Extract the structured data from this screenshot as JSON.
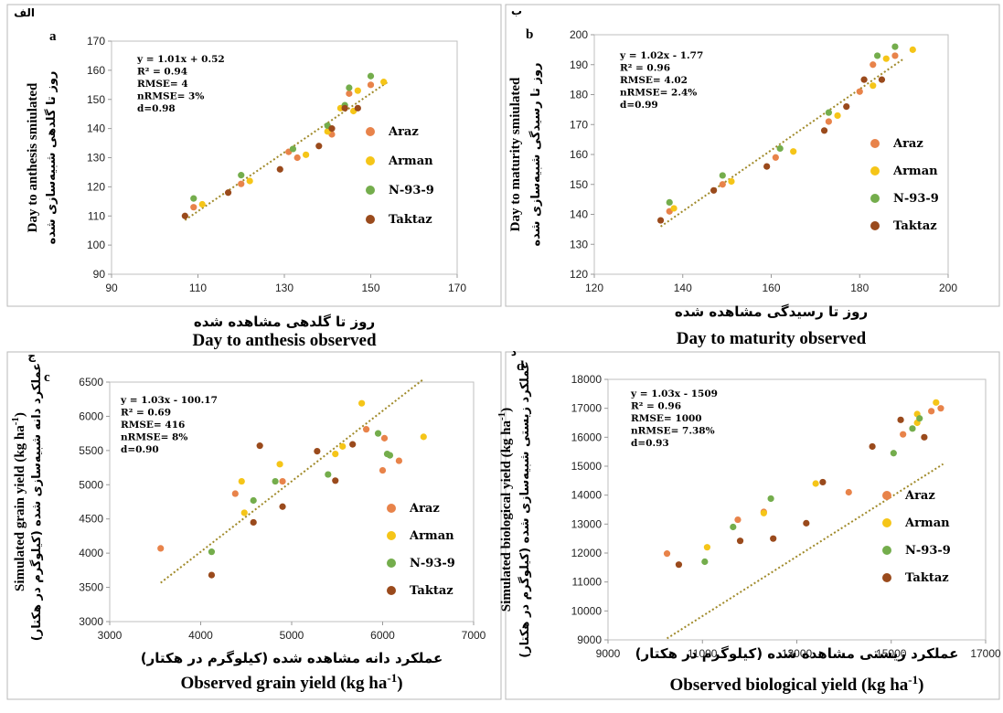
{
  "colors": {
    "Araz": "#e8834a",
    "Arman": "#f5c518",
    "N-93-9": "#74ad4c",
    "Taktaz": "#9a4a1c",
    "trend": "#a08a2a",
    "frame": "#b8b8b8"
  },
  "legend_labels": [
    "Araz",
    "Arman",
    "N-93-9",
    "Taktaz"
  ],
  "chart_data": [
    {
      "id": "a",
      "type": "scatter",
      "panel_letter": "a",
      "panel_letter_fa": "الف",
      "xlabel_fa": "روز تا گلدهی مشاهده شده",
      "xlabel": "Day to anthesis observed",
      "ylabel": "Day to anthesis smiulated",
      "ylabel_fa": "روز تا گلدهی شبیه‌سازی شده",
      "xlim": [
        90,
        170
      ],
      "ylim": [
        90,
        170
      ],
      "xticks": [
        90,
        110,
        130,
        150,
        170
      ],
      "yticks": [
        90,
        100,
        110,
        120,
        130,
        140,
        150,
        160,
        170
      ],
      "stats": [
        "y = 1.01x + 0.52",
        "R² = 0.94",
        "RMSE= 4",
        "nRMSE= 3%",
        "d=0.98"
      ],
      "trendline": {
        "slope": 1.01,
        "intercept": 0.52,
        "x_range": [
          107,
          154
        ]
      },
      "series": [
        {
          "name": "Araz",
          "points": [
            [
              109,
              113
            ],
            [
              120,
              121
            ],
            [
              141,
              138
            ],
            [
              145,
              152
            ],
            [
              150,
              155
            ],
            [
              133,
              130
            ],
            [
              131,
              132
            ]
          ]
        },
        {
          "name": "Arman",
          "points": [
            [
              111,
              114
            ],
            [
              122,
              122
            ],
            [
              135,
              131
            ],
            [
              146,
              146
            ],
            [
              147,
              153
            ],
            [
              153,
              156
            ],
            [
              140,
              139
            ],
            [
              143,
              147
            ]
          ]
        },
        {
          "name": "N-93-9",
          "points": [
            [
              109,
              116
            ],
            [
              120,
              124
            ],
            [
              132,
              133
            ],
            [
              140,
              141
            ],
            [
              144,
              148
            ],
            [
              145,
              154
            ],
            [
              150,
              158
            ]
          ]
        },
        {
          "name": "Taktaz",
          "points": [
            [
              107,
              110
            ],
            [
              117,
              118
            ],
            [
              129,
              126
            ],
            [
              138,
              134
            ],
            [
              141,
              140
            ],
            [
              144,
              147
            ],
            [
              147,
              147
            ]
          ]
        }
      ]
    },
    {
      "id": "b",
      "type": "scatter",
      "panel_letter": "b",
      "panel_letter_fa": "ب",
      "xlabel_fa": "روز تا رسیدگی مشاهده شده",
      "xlabel": "Day to maturity observed",
      "ylabel": "Day to maturity smiulated",
      "ylabel_fa": "روز تا رسیدگی شبیه‌سازی شده",
      "xlim": [
        120,
        200
      ],
      "ylim": [
        120,
        200
      ],
      "xticks": [
        120,
        140,
        160,
        180,
        200
      ],
      "yticks": [
        120,
        130,
        140,
        150,
        160,
        170,
        180,
        190,
        200
      ],
      "stats": [
        "y = 1.02x - 1.77",
        "R² = 0.96",
        "RMSE= 4.02",
        "nRMSE= 2.4%",
        "d=0.99"
      ],
      "trendline": {
        "slope": 1.02,
        "intercept": -1.77,
        "x_range": [
          135,
          190
        ]
      },
      "series": [
        {
          "name": "Araz",
          "points": [
            [
              137,
              141
            ],
            [
              149,
              150
            ],
            [
              161,
              159
            ],
            [
              173,
              171
            ],
            [
              180,
              181
            ],
            [
              183,
              190
            ],
            [
              188,
              193
            ]
          ]
        },
        {
          "name": "Arman",
          "points": [
            [
              138,
              142
            ],
            [
              151,
              151
            ],
            [
              165,
              161
            ],
            [
              175,
              173
            ],
            [
              183,
              183
            ],
            [
              186,
              192
            ],
            [
              192,
              195
            ]
          ]
        },
        {
          "name": "N-93-9",
          "points": [
            [
              137,
              144
            ],
            [
              149,
              153
            ],
            [
              162,
              162
            ],
            [
              173,
              174
            ],
            [
              184,
              193
            ],
            [
              188,
              196
            ]
          ]
        },
        {
          "name": "Taktaz",
          "points": [
            [
              135,
              138
            ],
            [
              147,
              148
            ],
            [
              159,
              156
            ],
            [
              172,
              168
            ],
            [
              177,
              176
            ],
            [
              181,
              185
            ],
            [
              185,
              185
            ]
          ]
        }
      ]
    },
    {
      "id": "c",
      "type": "scatter",
      "panel_letter": "c",
      "panel_letter_fa": "ج",
      "xlabel_fa": "عملکرد دانه مشاهده شده (کیلوگرم در هکتار)",
      "xlabel": "Observed grain yield (kg ha",
      "xlabel_sup": "-1",
      "xlabel_end": ")",
      "ylabel": "Simulated grain yield (kg ha",
      "ylabel_sup": "-1",
      "ylabel_end": ")",
      "ylabel_fa": "عملکرد دانه شبیه‌سازی شده (کیلوگرم در هکتار)",
      "xlim": [
        3000,
        7000
      ],
      "ylim": [
        3000,
        6500
      ],
      "xticks": [
        3000,
        4000,
        5000,
        6000,
        7000
      ],
      "yticks": [
        3000,
        3500,
        4000,
        4500,
        5000,
        5500,
        6000,
        6500
      ],
      "stats": [
        "y = 1.03x - 100.17",
        "R² = 0.69",
        "RMSE= 416",
        "nRMSE= 8%",
        "d=0.90"
      ],
      "trendline": {
        "slope": 1.03,
        "intercept": -100.17,
        "x_range": [
          3560,
          6450
        ]
      },
      "series": [
        {
          "name": "Araz",
          "points": [
            [
              3560,
              4070
            ],
            [
              4380,
              4870
            ],
            [
              4900,
              5050
            ],
            [
              5820,
              5810
            ],
            [
              6000,
              5210
            ],
            [
              6020,
              5680
            ],
            [
              6180,
              5350
            ]
          ]
        },
        {
          "name": "Arman",
          "points": [
            [
              4450,
              5050
            ],
            [
              4480,
              4590
            ],
            [
              4870,
              5300
            ],
            [
              5480,
              5450
            ],
            [
              5560,
              5560
            ],
            [
              5770,
              6190
            ],
            [
              6450,
              5700
            ]
          ]
        },
        {
          "name": "N-93-9",
          "points": [
            [
              4120,
              4020
            ],
            [
              4580,
              4770
            ],
            [
              4820,
              5050
            ],
            [
              5400,
              5150
            ],
            [
              5950,
              5750
            ],
            [
              6050,
              5450
            ],
            [
              6080,
              5430
            ]
          ]
        },
        {
          "name": "Taktaz",
          "points": [
            [
              4120,
              3680
            ],
            [
              4580,
              4450
            ],
            [
              4650,
              5570
            ],
            [
              4900,
              4680
            ],
            [
              5280,
              5490
            ],
            [
              5480,
              5060
            ],
            [
              5670,
              5590
            ]
          ]
        }
      ]
    },
    {
      "id": "d",
      "type": "scatter",
      "panel_letter": "d",
      "panel_letter_fa": "د",
      "xlabel_fa": "عملکرد زیستی مشاهده شده (کیلوگرم در هکتار)",
      "xlabel": "Observed biological yield (kg ha",
      "xlabel_sup": "-1",
      "xlabel_end": ")",
      "ylabel": "Simulated biological yield (kg ha",
      "ylabel_sup": "-1",
      "ylabel_end": ")",
      "ylabel_fa": "عملکرد زیستی شبیه‌سازی شده (کیلوگرم در هکتار)",
      "xlim": [
        9000,
        17000
      ],
      "ylim": [
        9000,
        18000
      ],
      "xticks": [
        9000,
        11000,
        13000,
        15000,
        17000
      ],
      "yticks": [
        9000,
        10000,
        11000,
        12000,
        13000,
        14000,
        15000,
        16000,
        17000,
        18000
      ],
      "stats": [
        "y = 1.03x - 1509",
        "R² = 0.96",
        "RMSE= 1000",
        "nRMSE= 7.38%",
        "d=0.93"
      ],
      "trendline": {
        "slope": 1.03,
        "intercept": -1509,
        "x_range": [
          10250,
          16100
        ]
      },
      "series": [
        {
          "name": "Araz",
          "points": [
            [
              10250,
              11980
            ],
            [
              11750,
              13150
            ],
            [
              12300,
              13420
            ],
            [
              14100,
              14100
            ],
            [
              15250,
              16100
            ],
            [
              15850,
              16900
            ],
            [
              16050,
              17000
            ]
          ]
        },
        {
          "name": "Arman",
          "points": [
            [
              11100,
              12200
            ],
            [
              12300,
              13380
            ],
            [
              13400,
              14400
            ],
            [
              15550,
              16500
            ],
            [
              15550,
              16800
            ],
            [
              15950,
              17200
            ]
          ]
        },
        {
          "name": "N-93-9",
          "points": [
            [
              11050,
              11700
            ],
            [
              11650,
              12900
            ],
            [
              12450,
              13880
            ],
            [
              15050,
              15450
            ],
            [
              15450,
              16300
            ],
            [
              15600,
              16650
            ]
          ]
        },
        {
          "name": "Taktaz",
          "points": [
            [
              10500,
              11600
            ],
            [
              11800,
              12420
            ],
            [
              12500,
              12500
            ],
            [
              13200,
              13030
            ],
            [
              13550,
              14450
            ],
            [
              14600,
              15680
            ],
            [
              15200,
              16600
            ],
            [
              15700,
              16000
            ]
          ]
        }
      ]
    }
  ]
}
